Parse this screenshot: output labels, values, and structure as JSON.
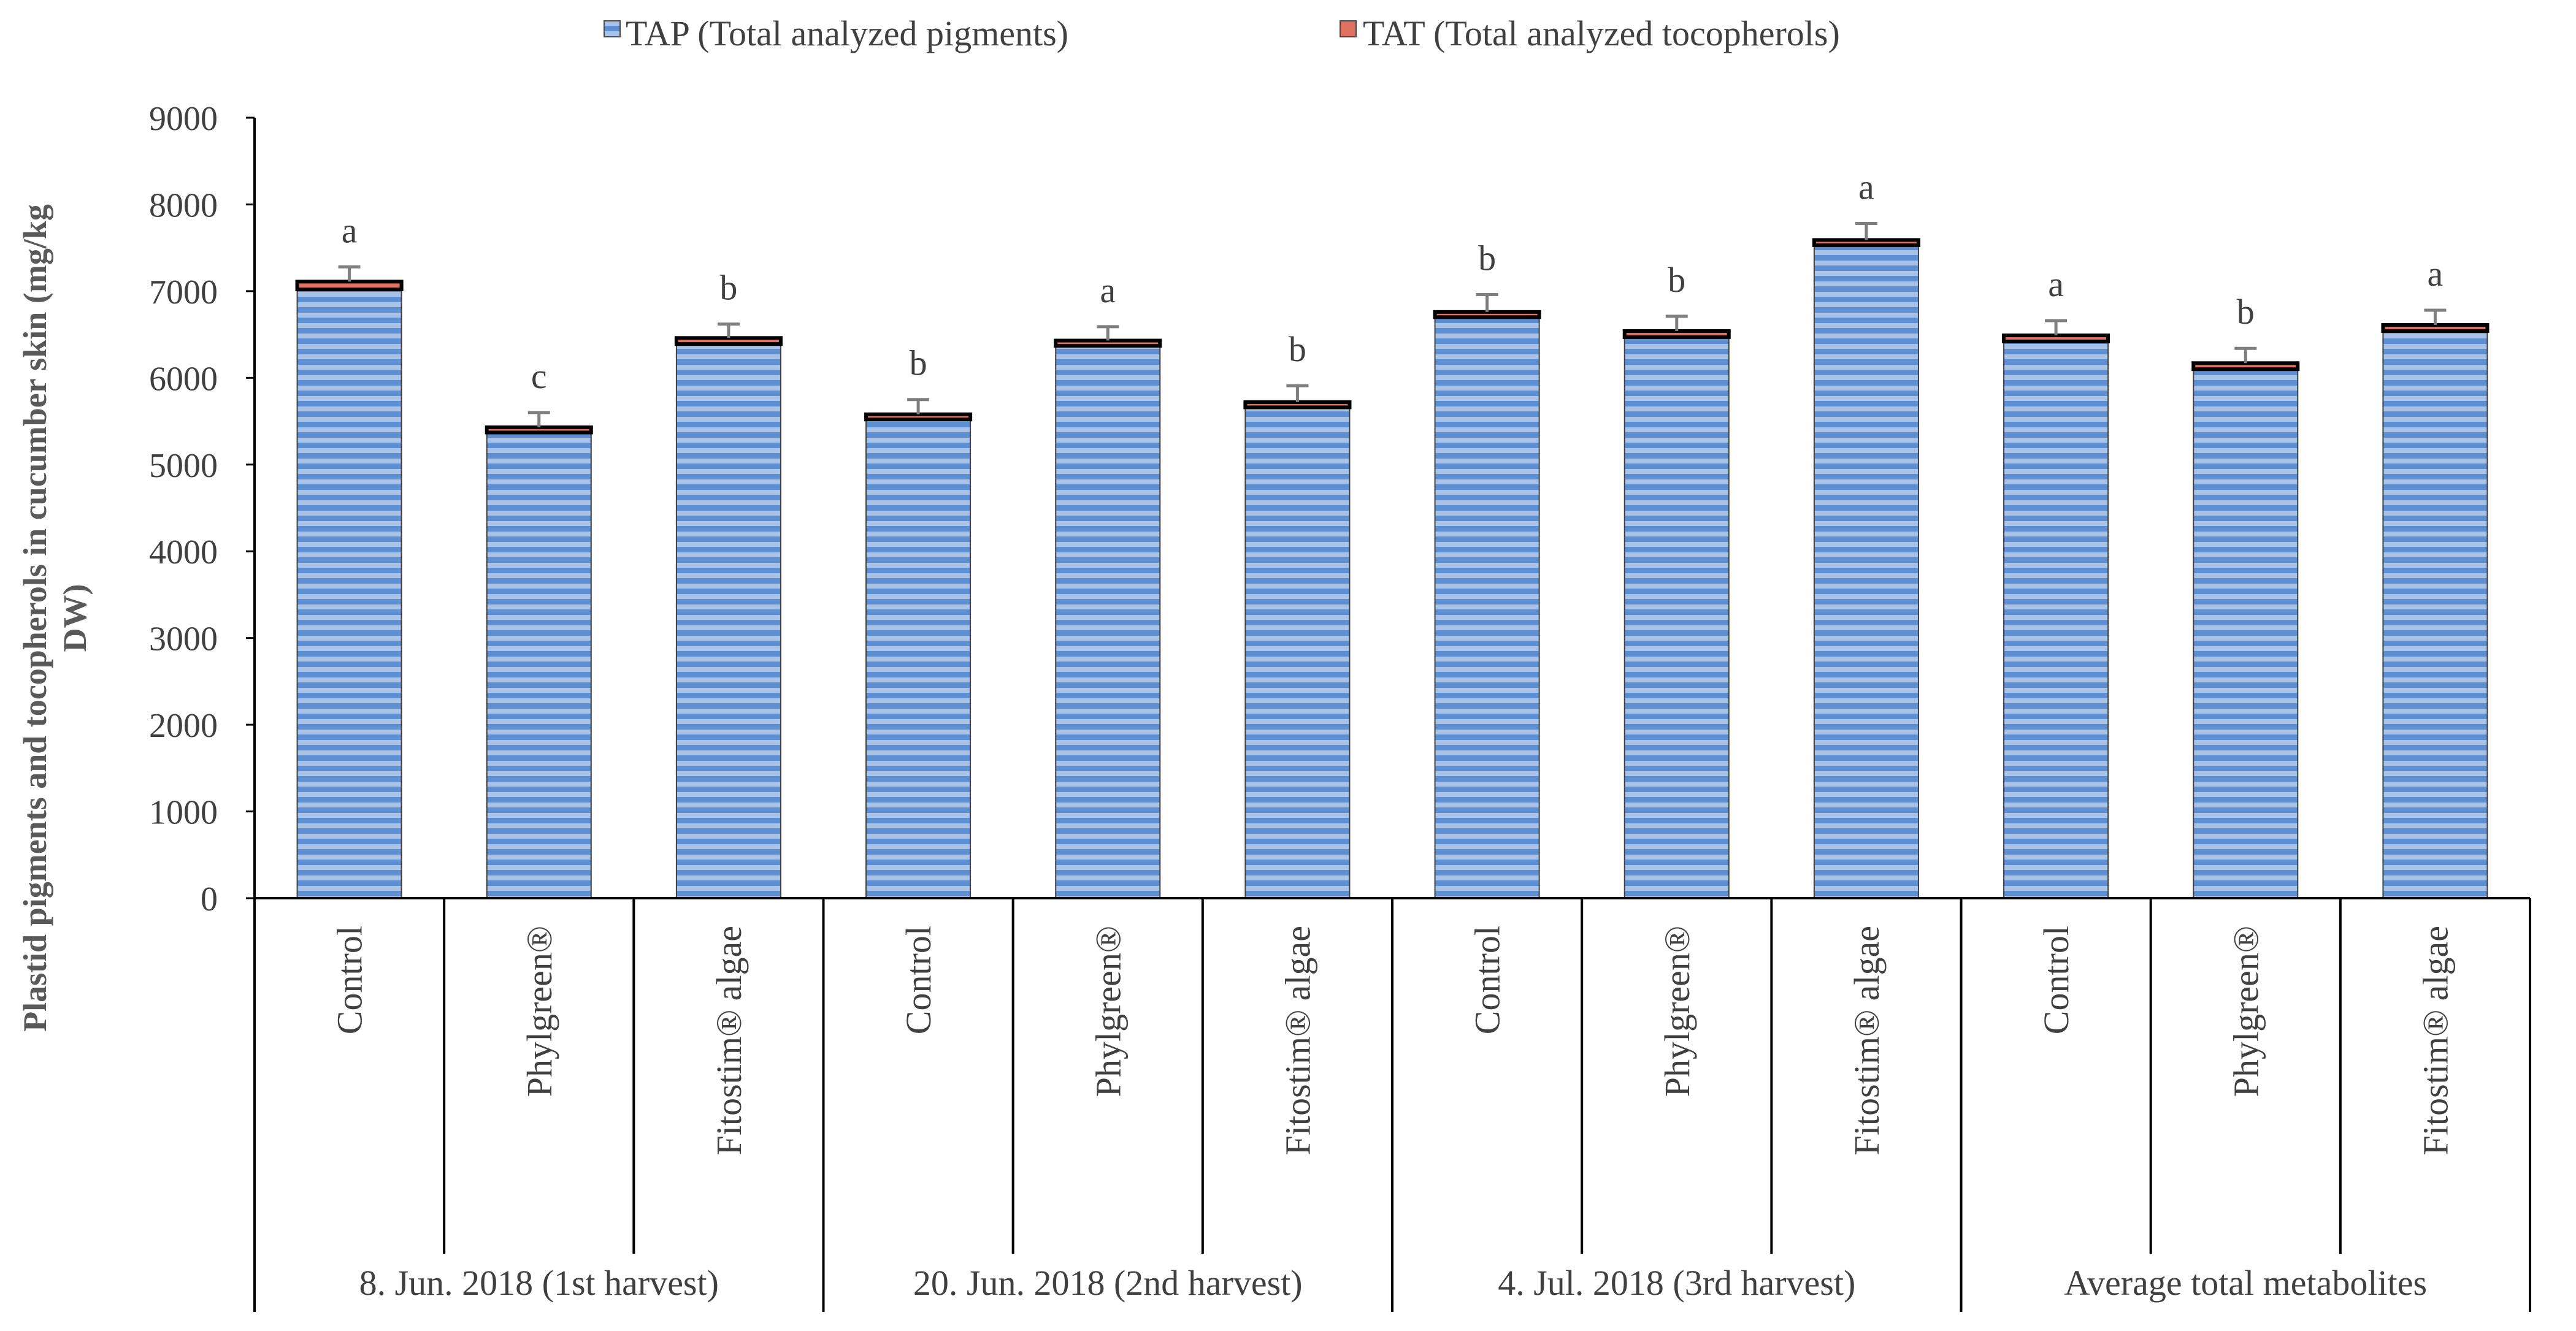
{
  "chart_data": {
    "type": "bar",
    "stacked": true,
    "title": "",
    "xlabel": "",
    "ylabel_lines": [
      "Plastid pigments and tocopherols  in cucumber skin (mg/kg",
      "DW)"
    ],
    "ylim": [
      0,
      9000
    ],
    "yticks": [
      0,
      1000,
      2000,
      3000,
      4000,
      5000,
      6000,
      7000,
      8000,
      9000
    ],
    "legend_position": "top",
    "groups": [
      {
        "label": "8. Jun. 2018 (1st harvest)",
        "categories": [
          "Control",
          "Phylgreen®",
          "Fitostim® algae"
        ]
      },
      {
        "label": "20. Jun. 2018 (2nd harvest)",
        "categories": [
          "Control",
          "Phylgreen®",
          "Fitostim® algae"
        ]
      },
      {
        "label": "4. Jul. 2018 (3rd harvest)",
        "categories": [
          "Control",
          "Phylgreen®",
          "Fitostim® algae"
        ]
      },
      {
        "label": "Average total metabolites",
        "categories": [
          "Control",
          "Phylgreen®",
          "Fitostim® algae"
        ]
      }
    ],
    "series": [
      {
        "name": "TAP (Total analyzed pigments)",
        "color": "#5b8ed0",
        "values": [
          7020,
          5370,
          6390,
          5520,
          6370,
          5660,
          6700,
          6470,
          7530,
          6420,
          6100,
          6540
        ]
      },
      {
        "name": "TAT (Total analyzed tocopherols)",
        "color": "#e07060",
        "values": [
          90,
          60,
          70,
          60,
          60,
          60,
          60,
          70,
          60,
          70,
          70,
          70
        ]
      }
    ],
    "error_bars": [
      170,
      170,
      160,
      170,
      160,
      190,
      200,
      170,
      190,
      170,
      170,
      170
    ],
    "significance_labels": [
      "a",
      "c",
      "b",
      "b",
      "a",
      "b",
      "b",
      "b",
      "a",
      "a",
      "b",
      "a"
    ]
  }
}
